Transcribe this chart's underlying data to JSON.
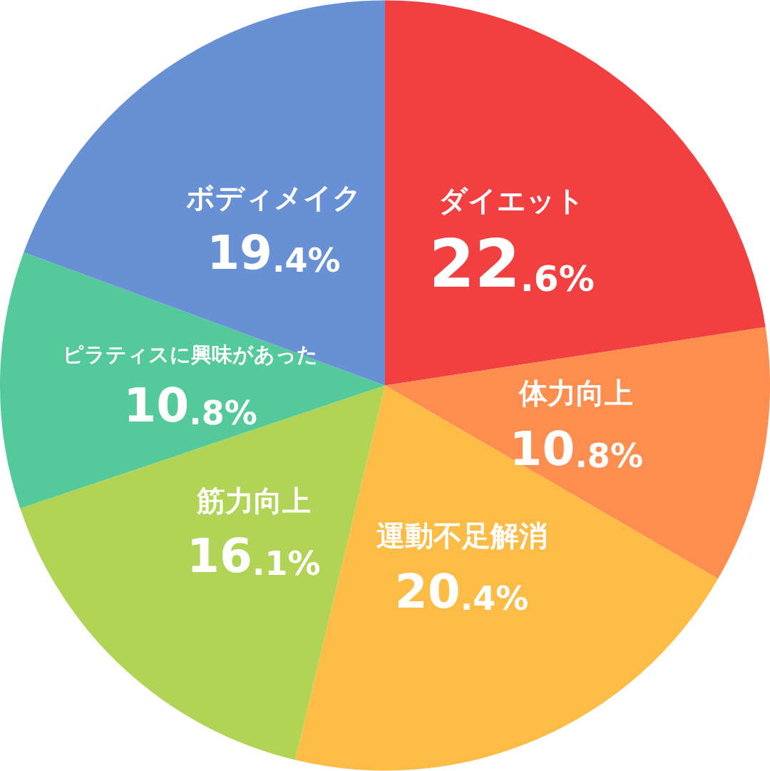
{
  "chart_data": {
    "type": "pie",
    "categories": [
      "ダイエット",
      "体力向上",
      "運動不足解消",
      "筋力向上",
      "ピラティスに興味があった",
      "ボディメイク"
    ],
    "values": [
      22.6,
      10.8,
      20.4,
      16.1,
      10.8,
      19.4
    ],
    "colors": [
      "#f23f3f",
      "#fe8e4f",
      "#fdbc45",
      "#b1d456",
      "#54c99a",
      "#6890d4"
    ],
    "value_labels": [
      "22.6%",
      "10.8%",
      "20.4%",
      "16.1%",
      "10.8%",
      "19.4%"
    ]
  }
}
